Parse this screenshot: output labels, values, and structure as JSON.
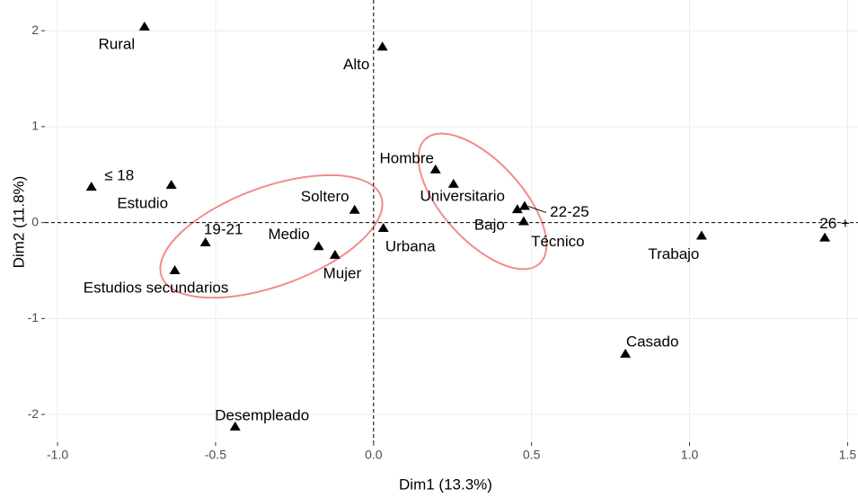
{
  "chart_data": {
    "type": "scatter",
    "x_label": "Dim1 (13.3%)",
    "y_label": "Dim2 (11.8%)",
    "labels": [
      "Rural",
      "Alto",
      "≤ 18",
      "Estudio",
      "Hombre",
      "Universitario",
      "Soltero",
      "22-25",
      "Bajo",
      "Técnico",
      "Urbana",
      "19-21",
      "Medio",
      "Mujer",
      "Estudios secundarios",
      "Trabajo",
      "26 +",
      "Casado",
      "Desempleado"
    ],
    "x": [
      -0.725,
      0.028,
      -0.893,
      -0.64,
      0.196,
      0.253,
      -0.06,
      0.478,
      0.455,
      0.475,
      0.031,
      -0.532,
      -0.174,
      -0.122,
      -0.629,
      1.038,
      1.428,
      0.797,
      -0.438
    ],
    "y": [
      2.04,
      1.83,
      0.37,
      0.39,
      0.55,
      0.4,
      0.13,
      0.17,
      0.136,
      0.01,
      -0.06,
      -0.21,
      -0.25,
      -0.34,
      -0.5,
      -0.14,
      -0.16,
      -1.37,
      -2.13
    ],
    "color": "#000000",
    "xlim": [
      -1.04,
      1.533
    ],
    "ylim": [
      -2.29,
      2.32
    ],
    "xticks": [
      {
        "value": -1,
        "label": "-1.0"
      },
      -0.5,
      {
        "value": 0,
        "label": "0.0"
      },
      0.5,
      {
        "value": 1,
        "label": "1.0"
      },
      1.5
    ],
    "yticks": [
      -2,
      -1,
      0,
      1,
      2
    ],
    "grid": true
  }
}
